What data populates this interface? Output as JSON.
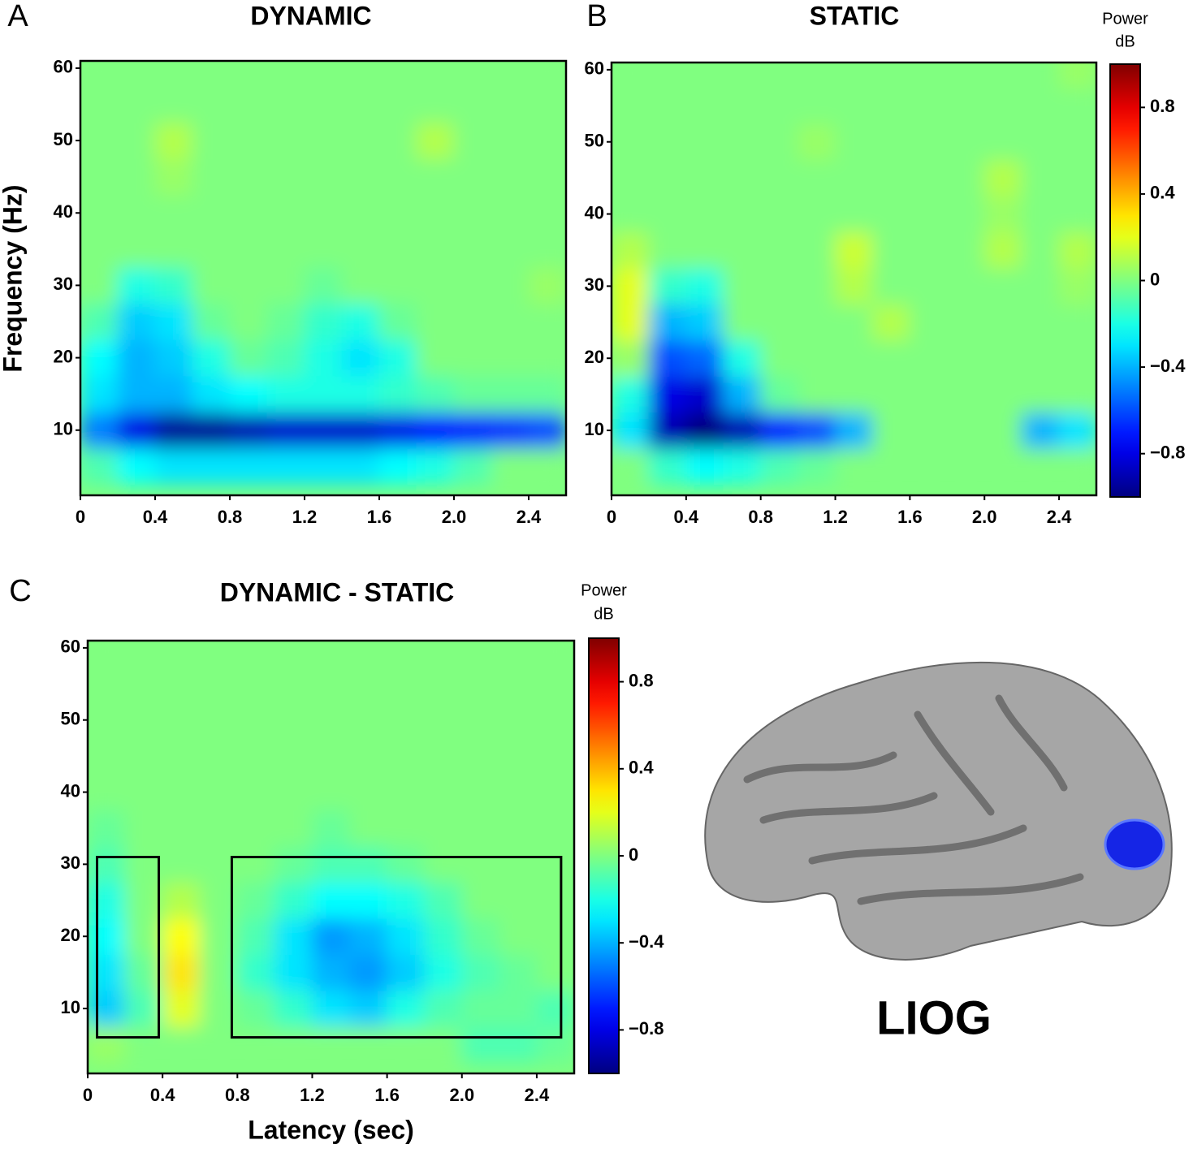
{
  "chart_data": [
    {
      "type": "heatmap",
      "panel_label": "A",
      "title": "DYNAMIC",
      "ylabel": "Frequency (Hz)",
      "x": [
        0.1,
        0.3,
        0.5,
        0.7,
        0.9,
        1.1,
        1.3,
        1.5,
        1.7,
        1.9,
        2.1,
        2.3,
        2.5
      ],
      "y": [
        5,
        10,
        15,
        20,
        25,
        30,
        35,
        40,
        45,
        50,
        55,
        60
      ],
      "z": [
        [
          -0.1,
          -0.25,
          -0.3,
          -0.3,
          -0.3,
          -0.3,
          -0.3,
          -0.3,
          -0.25,
          -0.2,
          -0.1,
          0,
          0
        ],
        [
          -0.5,
          -0.8,
          -0.95,
          -0.95,
          -0.9,
          -0.85,
          -0.85,
          -0.85,
          -0.8,
          -0.75,
          -0.7,
          -0.65,
          -0.6
        ],
        [
          -0.3,
          -0.4,
          -0.4,
          -0.3,
          -0.25,
          -0.2,
          -0.2,
          -0.2,
          -0.15,
          -0.1,
          -0.05,
          -0.05,
          -0.05
        ],
        [
          -0.25,
          -0.4,
          -0.35,
          -0.2,
          -0.05,
          -0.1,
          -0.2,
          -0.3,
          -0.2,
          0,
          0,
          0,
          0
        ],
        [
          -0.1,
          -0.35,
          -0.3,
          -0.05,
          0,
          -0.05,
          -0.15,
          -0.2,
          -0.05,
          0,
          0,
          0,
          0
        ],
        [
          0,
          -0.2,
          -0.15,
          0,
          0,
          0,
          -0.05,
          0,
          0,
          0,
          0,
          0,
          0.05
        ],
        [
          0,
          0,
          0,
          0,
          0,
          0,
          0,
          0,
          0,
          0,
          0,
          0,
          0
        ],
        [
          0,
          0,
          0,
          0,
          0,
          0,
          0,
          0,
          0,
          0,
          0,
          0,
          0
        ],
        [
          0,
          0,
          0.05,
          0,
          0,
          0,
          0,
          0,
          0,
          0,
          0,
          0,
          0
        ],
        [
          0,
          0,
          0.1,
          0,
          0,
          0,
          0,
          0,
          0,
          0.1,
          0,
          0,
          0
        ],
        [
          0,
          0,
          0,
          0,
          0,
          0,
          0,
          0,
          0,
          0,
          0,
          0,
          0
        ],
        [
          0,
          0,
          0,
          0,
          0,
          0,
          0,
          0,
          0,
          0,
          0,
          0,
          0
        ]
      ],
      "xlim": [
        0,
        2.6
      ],
      "ylim": [
        1,
        61
      ],
      "zlim": [
        -1,
        1
      ],
      "xticks": [
        0,
        0.4,
        0.8,
        1.2,
        1.6,
        {
          "value": 2,
          "label": "2.0"
        },
        2.4
      ],
      "yticks": [
        10,
        20,
        30,
        40,
        50,
        60
      ]
    },
    {
      "type": "heatmap",
      "panel_label": "B",
      "title": "STATIC",
      "x": [
        0.1,
        0.3,
        0.5,
        0.7,
        0.9,
        1.1,
        1.3,
        1.5,
        1.7,
        1.9,
        2.1,
        2.3,
        2.5
      ],
      "y": [
        5,
        10,
        15,
        20,
        25,
        30,
        35,
        40,
        45,
        50,
        55,
        60
      ],
      "z": [
        [
          0,
          -0.15,
          -0.25,
          -0.2,
          -0.1,
          -0.05,
          0,
          0,
          0,
          0,
          0,
          0,
          0
        ],
        [
          -0.3,
          -0.9,
          -1,
          -0.9,
          -0.7,
          -0.6,
          -0.4,
          0,
          0,
          0,
          0,
          -0.4,
          -0.3
        ],
        [
          -0.2,
          -0.8,
          -0.85,
          -0.4,
          -0.05,
          0,
          0,
          0,
          0,
          0,
          0,
          0,
          0
        ],
        [
          0.05,
          -0.6,
          -0.55,
          -0.2,
          0,
          0,
          0,
          0,
          0,
          0,
          0,
          0,
          0
        ],
        [
          0.2,
          -0.4,
          -0.35,
          0,
          0,
          0,
          0,
          0.1,
          0,
          0,
          0,
          0,
          0
        ],
        [
          0.2,
          -0.15,
          -0.2,
          0,
          0,
          0,
          0.1,
          0,
          0,
          0,
          0,
          0,
          0.05
        ],
        [
          0.1,
          0,
          0,
          0,
          0,
          0,
          0.15,
          0,
          0,
          0,
          0.1,
          0,
          0.1
        ],
        [
          0,
          0,
          0,
          0,
          0,
          0,
          0,
          0,
          0,
          0,
          0.05,
          0,
          0
        ],
        [
          0,
          0,
          0,
          0,
          0,
          0,
          0,
          0,
          0,
          0,
          0.1,
          0,
          0
        ],
        [
          0,
          0,
          0,
          0,
          0,
          0.05,
          0,
          0,
          0,
          0,
          0,
          0,
          0
        ],
        [
          0,
          0,
          0,
          0,
          0,
          0,
          0,
          0,
          0,
          0,
          0,
          0,
          0
        ],
        [
          0,
          0,
          0,
          0,
          0,
          0,
          0,
          0,
          0,
          0,
          0,
          0,
          0.05
        ]
      ],
      "xlim": [
        0,
        2.6
      ],
      "ylim": [
        1,
        61
      ],
      "zlim": [
        -1,
        1
      ],
      "xticks": [
        0,
        0.4,
        0.8,
        1.2,
        1.6,
        {
          "value": 2,
          "label": "2.0"
        },
        2.4
      ],
      "yticks": [
        10,
        20,
        30,
        40,
        50,
        60
      ],
      "colorbar_title": [
        "Power",
        "dB"
      ],
      "zticks": [
        {
          "value": -0.8,
          "label": "−0.8"
        },
        {
          "value": -0.4,
          "label": "−0.4"
        },
        0,
        0.4,
        0.8
      ]
    },
    {
      "type": "heatmap",
      "panel_label": "C",
      "title": "DYNAMIC - STATIC",
      "xlabel": "Latency (sec)",
      "x": [
        0.1,
        0.3,
        0.5,
        0.7,
        0.9,
        1.1,
        1.3,
        1.5,
        1.7,
        1.9,
        2.1,
        2.3,
        2.5
      ],
      "y": [
        5,
        10,
        15,
        20,
        25,
        30,
        35,
        40,
        45,
        50,
        55,
        60
      ],
      "z": [
        [
          0.05,
          0,
          0,
          0,
          0,
          0,
          0,
          0,
          0,
          0,
          -0.1,
          -0.1,
          -0.05
        ],
        [
          -0.35,
          -0.1,
          0.2,
          0,
          -0.05,
          -0.15,
          -0.3,
          -0.35,
          -0.2,
          -0.1,
          -0.05,
          -0.05,
          -0.1
        ],
        [
          -0.3,
          -0.05,
          0.3,
          0,
          -0.15,
          -0.3,
          -0.4,
          -0.45,
          -0.35,
          -0.2,
          -0.1,
          -0.05,
          0
        ],
        [
          -0.25,
          0,
          0.25,
          0,
          -0.1,
          -0.3,
          -0.45,
          -0.4,
          -0.3,
          -0.15,
          -0.05,
          0,
          0
        ],
        [
          -0.2,
          0,
          0.1,
          0,
          -0.05,
          -0.15,
          -0.25,
          -0.25,
          -0.2,
          -0.1,
          0,
          0,
          0
        ],
        [
          -0.1,
          0,
          0,
          0,
          0,
          -0.05,
          -0.1,
          -0.1,
          -0.05,
          0,
          0,
          0,
          0
        ],
        [
          -0.05,
          0,
          0,
          0,
          0,
          0,
          -0.05,
          0,
          0,
          0,
          0,
          0,
          0
        ],
        [
          0,
          0,
          0,
          0,
          0,
          0,
          0,
          0,
          0,
          0,
          0,
          0,
          0
        ],
        [
          0,
          0,
          0,
          0,
          0,
          0,
          0,
          0,
          0,
          0,
          0,
          0,
          0
        ],
        [
          0,
          0,
          0,
          0,
          0,
          0,
          0,
          0,
          0,
          0,
          0,
          0,
          0
        ],
        [
          0,
          0,
          0,
          0,
          0,
          0,
          0,
          0,
          0,
          0,
          0,
          0,
          0
        ],
        [
          0,
          0,
          0,
          0,
          0,
          0,
          0,
          0,
          0,
          0,
          0,
          0,
          0
        ]
      ],
      "boxes": [
        {
          "x": [
            0.05,
            0.38
          ],
          "y": [
            6,
            31
          ]
        },
        {
          "x": [
            0.77,
            2.53
          ],
          "y": [
            6,
            31
          ]
        }
      ],
      "xlim": [
        0,
        2.6
      ],
      "ylim": [
        1,
        61
      ],
      "zlim": [
        -1,
        1
      ],
      "xticks": [
        0,
        0.4,
        0.8,
        1.2,
        1.6,
        {
          "value": 2,
          "label": "2.0"
        },
        2.4
      ],
      "yticks": [
        10,
        20,
        30,
        40,
        50,
        60
      ],
      "colorbar_title": [
        "Power",
        "dB"
      ],
      "zticks": [
        {
          "value": -0.8,
          "label": "−0.8"
        },
        {
          "value": -0.4,
          "label": "−0.4"
        },
        0,
        0.4,
        0.8
      ]
    }
  ],
  "brain": {
    "label": "LIOG"
  }
}
